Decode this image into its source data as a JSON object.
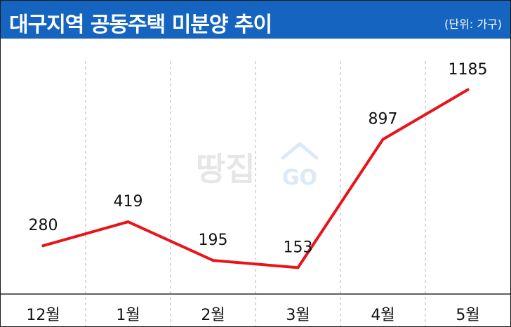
{
  "title": "대구지역 공동주택 미분양 추이",
  "unit": "(단위:  가구)",
  "watermark": {
    "text": "땅집",
    "logo": "GO"
  },
  "colors": {
    "header": "#1565c0",
    "line": "#e8141c",
    "grid": "#b5b5b5"
  },
  "chart_data": {
    "type": "line",
    "title": "대구지역 공동주택 미분양 추이",
    "unit": "(단위:  가구)",
    "categories": [
      "12월",
      "1월",
      "2월",
      "3월",
      "4월",
      "5월"
    ],
    "series": [
      {
        "values": [
          280,
          419,
          195,
          153,
          897,
          1185
        ]
      }
    ],
    "ylim": [
      0,
      1400
    ],
    "grid": "vertical dashed",
    "legend": "none"
  }
}
